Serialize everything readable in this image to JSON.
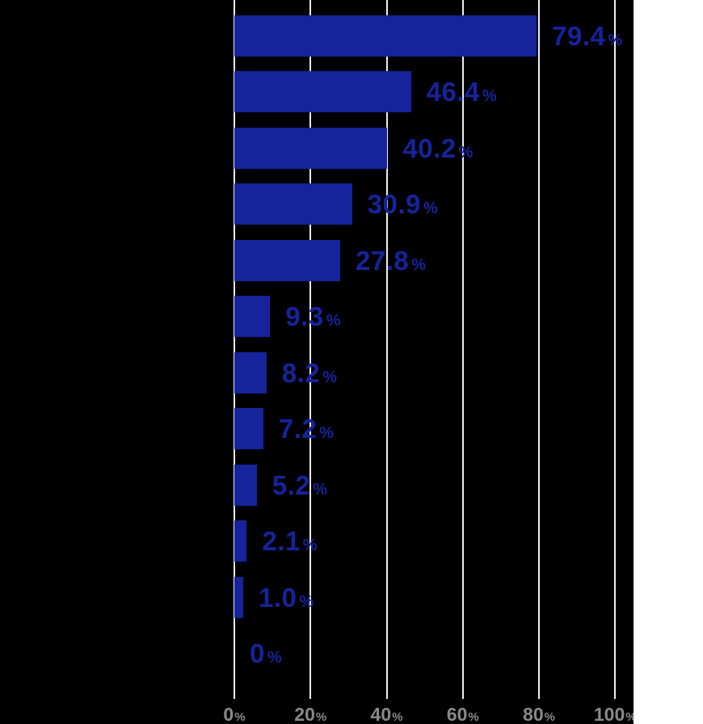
{
  "chart_data": {
    "type": "bar",
    "orientation": "horizontal",
    "title": "",
    "values": [
      79.4,
      46.4,
      40.2,
      30.9,
      27.8,
      9.3,
      8.2,
      7.2,
      5.2,
      2.1,
      1.0,
      0
    ],
    "value_labels": [
      "79.4",
      "46.4",
      "40.2",
      "30.9",
      "27.8",
      "9.3",
      "8.2",
      "7.2",
      "5.2",
      "2.1",
      "1.0",
      "0"
    ],
    "unit": "%",
    "xlabel": "",
    "ylabel": "",
    "xlim": [
      0,
      100
    ],
    "x_ticks": [
      0,
      20,
      40,
      60,
      80,
      100
    ],
    "x_tick_labels": [
      "0",
      "20",
      "40",
      "60",
      "80",
      "100"
    ],
    "grid": true,
    "legend": false
  },
  "colors": {
    "bar": "#16239B",
    "value_label": "#16239B",
    "gridline": "#EDEDEB",
    "tick_label": "#8A8A8A",
    "background": "#000000",
    "right_panel": "#FFFFFF"
  }
}
